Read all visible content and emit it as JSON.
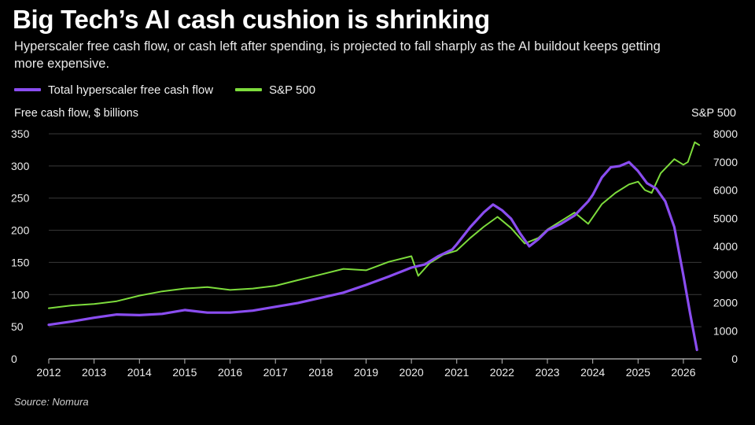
{
  "title": "Big Tech’s AI cash cushion is shrinking",
  "subtitle": "Hyperscaler free cash flow, or cash left after spending, is projected to fall sharply as the AI buildout keeps getting more expensive.",
  "source": "Source: Nomura",
  "colors": {
    "background": "#000000",
    "fcf": "#8a4df0",
    "sp500": "#7ddc3c",
    "grid": "#3a3a3a"
  },
  "chart_data": {
    "type": "line",
    "title": "Big Tech’s AI cash cushion is shrinking",
    "left_axis_label": "Free cash flow, $ billions",
    "right_axis_label": "S&P 500",
    "left_ylim": [
      0,
      350
    ],
    "left_ticks": [
      0,
      50,
      100,
      150,
      200,
      250,
      300,
      350
    ],
    "right_ylim": [
      0,
      8000
    ],
    "right_ticks": [
      0,
      1000,
      2000,
      3000,
      4000,
      5000,
      6000,
      7000,
      8000
    ],
    "xlim": [
      2012,
      2026.4
    ],
    "x_ticks": [
      "2012",
      "2013",
      "2014",
      "2015",
      "2016",
      "2017",
      "2018",
      "2019",
      "2020",
      "2021",
      "2022",
      "2023",
      "2024",
      "2025",
      "2026"
    ],
    "grid": "horizontal",
    "legend_position": "top-left",
    "series": [
      {
        "name": "Total hyperscaler free cash flow",
        "axis": "left",
        "color": "#8a4df0",
        "points": [
          [
            2012.0,
            53
          ],
          [
            2012.5,
            58
          ],
          [
            2013.0,
            64
          ],
          [
            2013.5,
            69
          ],
          [
            2014.0,
            68
          ],
          [
            2014.5,
            70
          ],
          [
            2015.0,
            76
          ],
          [
            2015.5,
            72
          ],
          [
            2016.0,
            72
          ],
          [
            2016.5,
            75
          ],
          [
            2017.0,
            81
          ],
          [
            2017.5,
            87
          ],
          [
            2018.0,
            95
          ],
          [
            2018.5,
            103
          ],
          [
            2019.0,
            115
          ],
          [
            2019.5,
            128
          ],
          [
            2020.0,
            142
          ],
          [
            2020.3,
            147
          ],
          [
            2020.6,
            160
          ],
          [
            2020.9,
            170
          ],
          [
            2021.0,
            178
          ],
          [
            2021.3,
            205
          ],
          [
            2021.6,
            228
          ],
          [
            2021.8,
            240
          ],
          [
            2022.0,
            231
          ],
          [
            2022.2,
            218
          ],
          [
            2022.4,
            195
          ],
          [
            2022.6,
            175
          ],
          [
            2022.8,
            186
          ],
          [
            2023.0,
            200
          ],
          [
            2023.3,
            210
          ],
          [
            2023.6,
            223
          ],
          [
            2023.9,
            245
          ],
          [
            2024.0,
            255
          ],
          [
            2024.2,
            282
          ],
          [
            2024.4,
            298
          ],
          [
            2024.6,
            300
          ],
          [
            2024.8,
            306
          ],
          [
            2025.0,
            292
          ],
          [
            2025.2,
            273
          ],
          [
            2025.4,
            265
          ],
          [
            2025.6,
            245
          ],
          [
            2025.8,
            205
          ],
          [
            2026.0,
            130
          ],
          [
            2026.15,
            70
          ],
          [
            2026.3,
            14
          ]
        ]
      },
      {
        "name": "S&P 500",
        "axis": "right",
        "color": "#7ddc3c",
        "points": [
          [
            2012.0,
            1800
          ],
          [
            2012.5,
            1900
          ],
          [
            2013.0,
            1950
          ],
          [
            2013.5,
            2050
          ],
          [
            2014.0,
            2250
          ],
          [
            2014.5,
            2400
          ],
          [
            2015.0,
            2500
          ],
          [
            2015.5,
            2550
          ],
          [
            2016.0,
            2450
          ],
          [
            2016.5,
            2500
          ],
          [
            2017.0,
            2600
          ],
          [
            2017.5,
            2800
          ],
          [
            2018.0,
            3000
          ],
          [
            2018.5,
            3200
          ],
          [
            2019.0,
            3150
          ],
          [
            2019.5,
            3450
          ],
          [
            2020.0,
            3650
          ],
          [
            2020.15,
            2950
          ],
          [
            2020.4,
            3400
          ],
          [
            2020.7,
            3700
          ],
          [
            2021.0,
            3850
          ],
          [
            2021.3,
            4300
          ],
          [
            2021.6,
            4700
          ],
          [
            2021.9,
            5050
          ],
          [
            2022.2,
            4650
          ],
          [
            2022.5,
            4100
          ],
          [
            2022.8,
            4300
          ],
          [
            2023.0,
            4600
          ],
          [
            2023.3,
            4900
          ],
          [
            2023.6,
            5200
          ],
          [
            2023.9,
            4800
          ],
          [
            2024.2,
            5500
          ],
          [
            2024.5,
            5900
          ],
          [
            2024.8,
            6200
          ],
          [
            2025.0,
            6300
          ],
          [
            2025.15,
            6000
          ],
          [
            2025.3,
            5900
          ],
          [
            2025.5,
            6600
          ],
          [
            2025.8,
            7100
          ],
          [
            2026.0,
            6900
          ],
          [
            2026.1,
            7000
          ],
          [
            2026.25,
            7700
          ],
          [
            2026.35,
            7600
          ]
        ]
      }
    ]
  }
}
